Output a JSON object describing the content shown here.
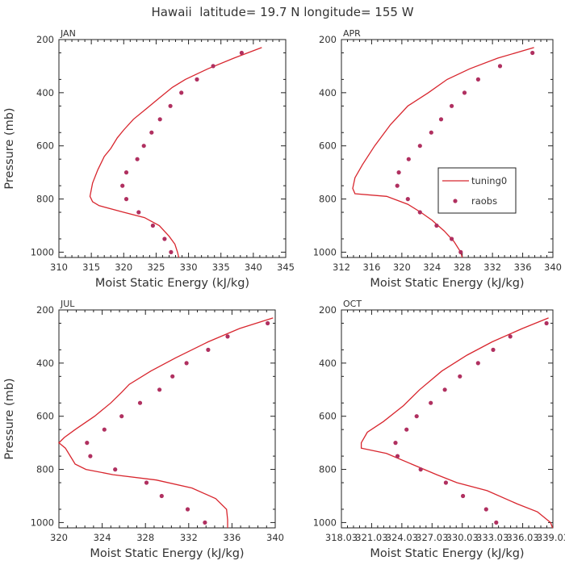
{
  "figure_title": "Hawaii  latitude= 19.7 N longitude= 155 W",
  "colors": {
    "model": "#d8262e",
    "obs": "#b03060",
    "axis": "#222222",
    "text": "#333333"
  },
  "legend": {
    "placement": "panel APR, right-middle",
    "model_label": "tuning0",
    "obs_label": "raobs"
  },
  "chart_data": [
    {
      "type": "line+scatter",
      "title": "JAN",
      "xlabel": "Moist Static Energy (kJ/kg)",
      "ylabel": "Pressure (mb)",
      "xlim": [
        310,
        345
      ],
      "ylim": [
        200,
        1020
      ],
      "y_inverted": true,
      "xticks": [
        310,
        315,
        320,
        325,
        330,
        335,
        340,
        345
      ],
      "xtick_labels": [
        "310",
        "315",
        "320",
        "325",
        "330",
        "335",
        "340",
        "345"
      ],
      "yticks": [
        200,
        400,
        600,
        800,
        1000
      ],
      "ytick_labels": [
        "200",
        "400",
        "600",
        "800",
        "1000"
      ],
      "series": [
        {
          "name": "tuning0",
          "kind": "line",
          "points": [
            [
              341.3,
              230
            ],
            [
              337,
              270
            ],
            [
              333,
              310
            ],
            [
              329.5,
              350
            ],
            [
              327.5,
              380
            ],
            [
              325.5,
              420
            ],
            [
              323.5,
              460
            ],
            [
              321.5,
              500
            ],
            [
              320,
              540
            ],
            [
              319,
              570
            ],
            [
              318,
              610
            ],
            [
              317,
              640
            ],
            [
              316,
              690
            ],
            [
              315.2,
              740
            ],
            [
              314.8,
              790
            ],
            [
              315.2,
              810
            ],
            [
              316.2,
              825
            ],
            [
              320,
              850
            ],
            [
              323.2,
              870
            ],
            [
              325.5,
              900
            ],
            [
              327,
              940
            ],
            [
              327.9,
              970
            ],
            [
              328.3,
              1000
            ],
            [
              328.5,
              1020
            ]
          ]
        },
        {
          "name": "raobs",
          "kind": "scatter",
          "points": [
            [
              338.2,
              250
            ],
            [
              333.8,
              300
            ],
            [
              331.3,
              350
            ],
            [
              328.9,
              400
            ],
            [
              327.2,
              450
            ],
            [
              325.6,
              500
            ],
            [
              324.3,
              550
            ],
            [
              323.1,
              600
            ],
            [
              322.1,
              650
            ],
            [
              320.4,
              700
            ],
            [
              319.8,
              750
            ],
            [
              320.4,
              800
            ],
            [
              322.3,
              850
            ],
            [
              324.5,
              900
            ],
            [
              326.3,
              950
            ],
            [
              327.3,
              1000
            ]
          ]
        }
      ]
    },
    {
      "type": "line+scatter",
      "title": "APR",
      "xlabel": "Moist Static Energy (kJ/kg)",
      "ylabel": "",
      "xlim": [
        312,
        340
      ],
      "ylim": [
        200,
        1020
      ],
      "y_inverted": true,
      "xticks": [
        312,
        316,
        320,
        324,
        328,
        332,
        336,
        340
      ],
      "xtick_labels": [
        "312",
        "316",
        "320",
        "324",
        "328",
        "332",
        "336",
        "340"
      ],
      "yticks": [
        200,
        400,
        600,
        800,
        1000
      ],
      "ytick_labels": [
        "200",
        "400",
        "600",
        "800",
        "1000"
      ],
      "series": [
        {
          "name": "tuning0",
          "kind": "line",
          "points": [
            [
              337.5,
              230
            ],
            [
              332.7,
              270
            ],
            [
              329,
              310
            ],
            [
              326,
              350
            ],
            [
              323.5,
              400
            ],
            [
              320.8,
              450
            ],
            [
              318.5,
              520
            ],
            [
              316.4,
              600
            ],
            [
              314.8,
              670
            ],
            [
              313.8,
              720
            ],
            [
              313.5,
              760
            ],
            [
              313.8,
              780
            ],
            [
              318,
              790
            ],
            [
              320.8,
              820
            ],
            [
              322.5,
              850
            ],
            [
              324,
              880
            ],
            [
              325.6,
              920
            ],
            [
              326.9,
              960
            ],
            [
              327.8,
              1000
            ],
            [
              328,
              1020
            ]
          ]
        },
        {
          "name": "raobs",
          "kind": "scatter",
          "points": [
            [
              337.3,
              250
            ],
            [
              333,
              300
            ],
            [
              330.1,
              350
            ],
            [
              328.3,
              400
            ],
            [
              326.6,
              450
            ],
            [
              325.2,
              500
            ],
            [
              323.9,
              550
            ],
            [
              322.4,
              600
            ],
            [
              320.9,
              650
            ],
            [
              319.6,
              700
            ],
            [
              319.4,
              750
            ],
            [
              320.8,
              800
            ],
            [
              322.4,
              850
            ],
            [
              324.6,
              900
            ],
            [
              326.6,
              950
            ],
            [
              327.8,
              1000
            ]
          ]
        }
      ]
    },
    {
      "type": "line+scatter",
      "title": "JUL",
      "xlabel": "Moist Static Energy (kJ/kg)",
      "ylabel": "Pressure (mb)",
      "xlim": [
        320,
        340
      ],
      "ylim": [
        200,
        1020
      ],
      "y_inverted": true,
      "xticks": [
        320,
        324,
        328,
        332,
        336,
        340
      ],
      "xtick_labels": [
        "320",
        "324",
        "328",
        "332",
        "336",
        "340"
      ],
      "yticks": [
        200,
        400,
        600,
        800,
        1000
      ],
      "ytick_labels": [
        "200",
        "400",
        "600",
        "800",
        "1000"
      ],
      "series": [
        {
          "name": "tuning0",
          "kind": "line",
          "points": [
            [
              339.8,
              230
            ],
            [
              336.7,
              270
            ],
            [
              333.8,
              320
            ],
            [
              330.8,
              380
            ],
            [
              328.5,
              430
            ],
            [
              326.5,
              480
            ],
            [
              325.8,
              510
            ],
            [
              324.8,
              550
            ],
            [
              323.3,
              600
            ],
            [
              321.5,
              650
            ],
            [
              320.5,
              680
            ],
            [
              320,
              700
            ],
            [
              320.6,
              720
            ],
            [
              321.2,
              760
            ],
            [
              321.5,
              780
            ],
            [
              322.5,
              800
            ],
            [
              325,
              820
            ],
            [
              329,
              840
            ],
            [
              332.3,
              870
            ],
            [
              334.5,
              910
            ],
            [
              335.5,
              950
            ],
            [
              335.6,
              990
            ],
            [
              335.6,
              1020
            ]
          ]
        },
        {
          "name": "raobs",
          "kind": "scatter",
          "points": [
            [
              339.3,
              250
            ],
            [
              335.6,
              300
            ],
            [
              333.8,
              350
            ],
            [
              331.8,
              400
            ],
            [
              330.5,
              450
            ],
            [
              329.3,
              500
            ],
            [
              327.5,
              550
            ],
            [
              325.8,
              600
            ],
            [
              324.2,
              650
            ],
            [
              322.6,
              700
            ],
            [
              322.9,
              750
            ],
            [
              325.2,
              800
            ],
            [
              328.1,
              850
            ],
            [
              329.5,
              900
            ],
            [
              331.9,
              950
            ],
            [
              333.5,
              1000
            ]
          ]
        }
      ]
    },
    {
      "type": "line+scatter",
      "title": "OCT",
      "xlabel": "Moist Static Energy (kJ/kg)",
      "ylabel": "",
      "xlim": [
        318.03,
        339.03
      ],
      "ylim": [
        200,
        1020
      ],
      "y_inverted": true,
      "xticks": [
        318.03,
        321.03,
        324.03,
        327.03,
        330.03,
        333.03,
        336.03,
        339.03
      ],
      "xtick_labels": [
        "318.03",
        "321.03",
        "324.03",
        "327.03",
        "330.03",
        "333.03",
        "336.03",
        "339.03"
      ],
      "yticks": [
        200,
        400,
        600,
        800,
        1000
      ],
      "ytick_labels": [
        "200",
        "400",
        "600",
        "800",
        "1000"
      ],
      "series": [
        {
          "name": "tuning0",
          "kind": "line",
          "points": [
            [
              338.6,
              230
            ],
            [
              336,
              270
            ],
            [
              333,
              320
            ],
            [
              330.5,
              370
            ],
            [
              328,
              430
            ],
            [
              325.8,
              500
            ],
            [
              324.2,
              560
            ],
            [
              322.2,
              620
            ],
            [
              320.6,
              660
            ],
            [
              320,
              700
            ],
            [
              320,
              720
            ],
            [
              322.5,
              740
            ],
            [
              325,
              780
            ],
            [
              327.5,
              820
            ],
            [
              329.5,
              850
            ],
            [
              332.5,
              880
            ],
            [
              335.5,
              930
            ],
            [
              337.5,
              960
            ],
            [
              338.8,
              1000
            ],
            [
              339,
              1020
            ]
          ]
        },
        {
          "name": "raobs",
          "kind": "scatter",
          "points": [
            [
              338.4,
              250
            ],
            [
              334.8,
              300
            ],
            [
              333.1,
              350
            ],
            [
              331.6,
              400
            ],
            [
              329.8,
              450
            ],
            [
              328.3,
              500
            ],
            [
              326.9,
              550
            ],
            [
              325.5,
              600
            ],
            [
              324.5,
              650
            ],
            [
              323.4,
              700
            ],
            [
              323.6,
              750
            ],
            [
              325.9,
              800
            ],
            [
              328.4,
              850
            ],
            [
              330.1,
              900
            ],
            [
              332.4,
              950
            ],
            [
              333.4,
              1000
            ]
          ]
        }
      ]
    }
  ]
}
